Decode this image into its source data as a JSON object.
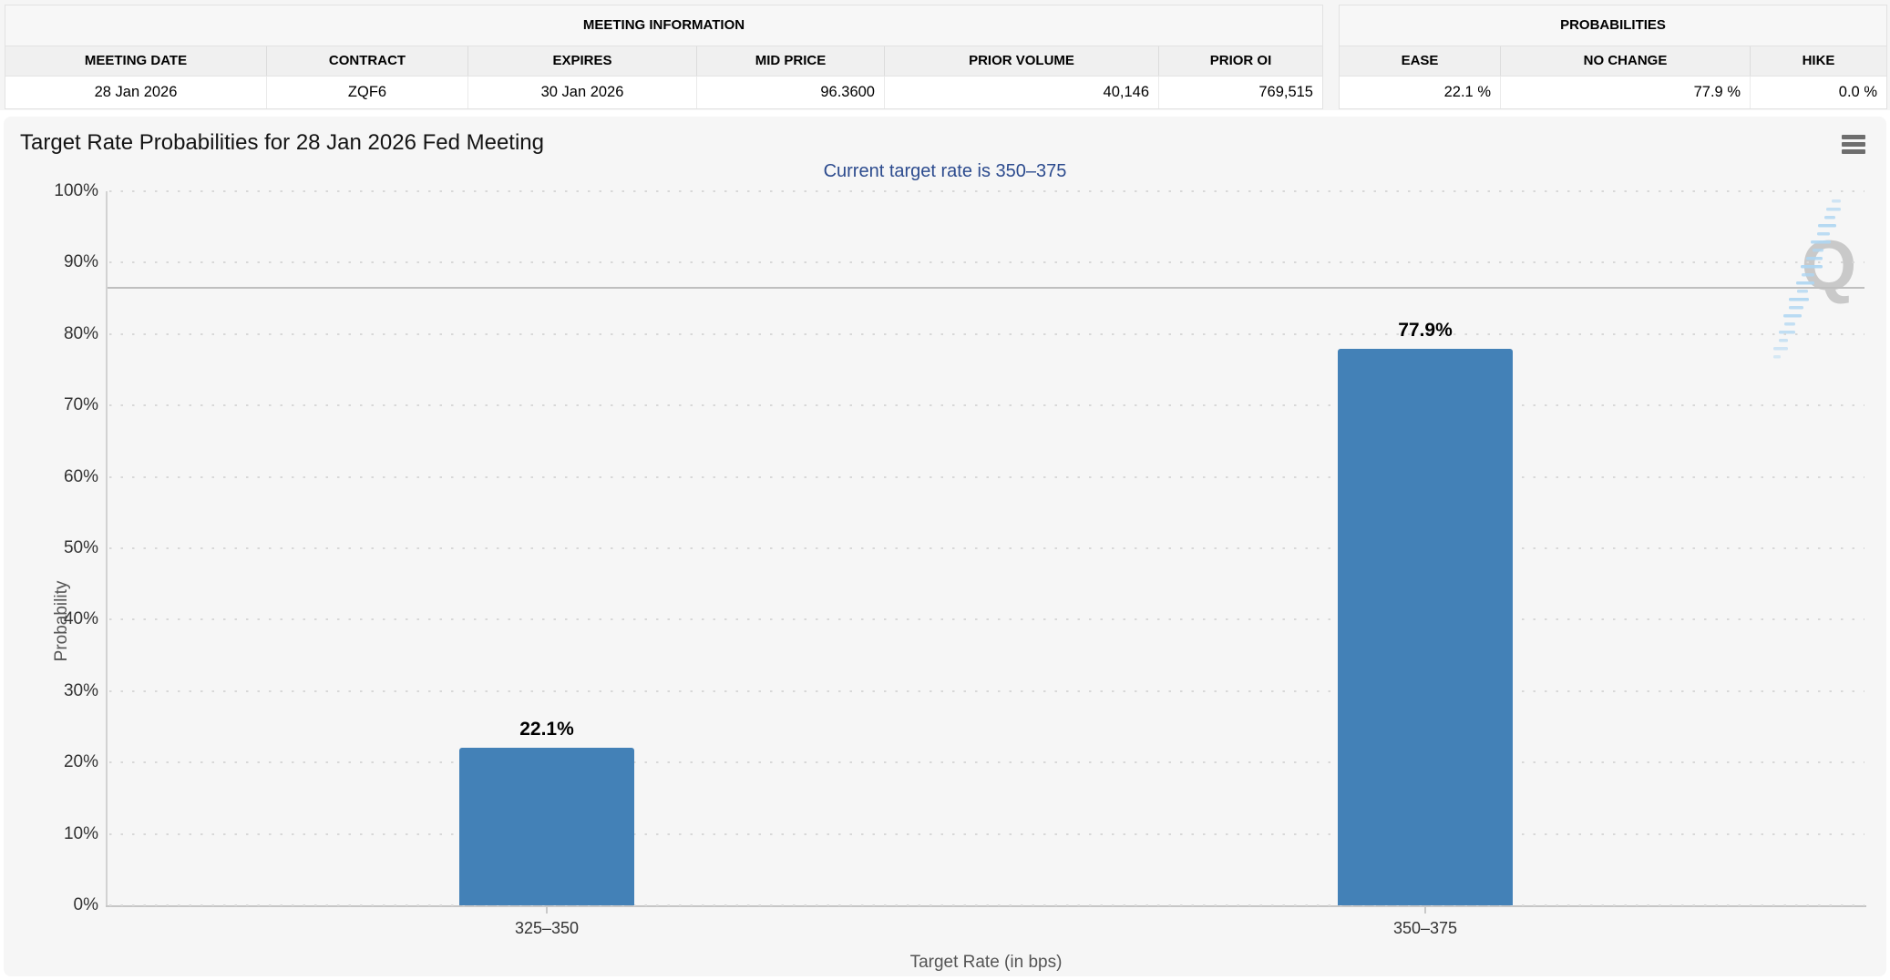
{
  "meeting_information": {
    "title": "MEETING INFORMATION",
    "columns": [
      "MEETING DATE",
      "CONTRACT",
      "EXPIRES",
      "MID PRICE",
      "PRIOR VOLUME",
      "PRIOR OI"
    ],
    "values": [
      "28 Jan 2026",
      "ZQF6",
      "30 Jan 2026",
      "96.3600",
      "40,146",
      "769,515"
    ]
  },
  "probabilities": {
    "title": "PROBABILITIES",
    "columns": [
      "EASE",
      "NO CHANGE",
      "HIKE"
    ],
    "values": [
      "22.1 %",
      "77.9 %",
      "0.0 %"
    ]
  },
  "chart": {
    "title": "Target Rate Probabilities for 28 Jan 2026 Fed Meeting",
    "subtitle": "Current target rate is 350–375",
    "menu_icon": "hamburger-menu-icon",
    "watermark_letter": "Q"
  },
  "chart_data": {
    "type": "bar",
    "title": "Target Rate Probabilities for 28 Jan 2026 Fed Meeting",
    "subtitle": "Current target rate is 350–375",
    "categories": [
      "325–350",
      "350–375"
    ],
    "series": [
      {
        "name": "Probability",
        "values": [
          22.1,
          77.9
        ]
      }
    ],
    "data_labels": [
      "22.1%",
      "77.9%"
    ],
    "xlabel": "Target Rate (in bps)",
    "ylabel": "Probability",
    "ylim": [
      0,
      100
    ],
    "ytick_step": 10,
    "yticks": [
      "0%",
      "10%",
      "20%",
      "30%",
      "40%",
      "50%",
      "60%",
      "70%",
      "80%",
      "90%",
      "100%"
    ],
    "grid": "dotted-horizontal",
    "legend": "none",
    "reference_line_pct": 86.5
  },
  "colors": {
    "bar": "#4381b7",
    "subtitle_text": "#2c4b8e",
    "panel_background": "#f6f6f6",
    "watermark_gray": "#c9c9c9",
    "watermark_blue": "#aed6f2"
  }
}
